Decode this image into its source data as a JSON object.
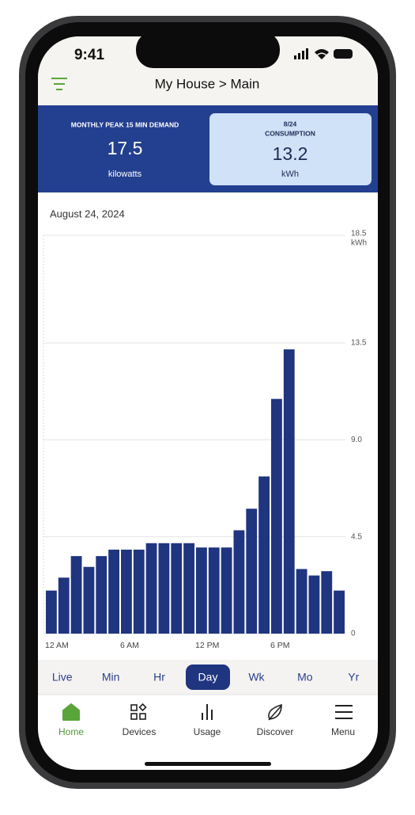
{
  "status": {
    "time": "9:41"
  },
  "header": {
    "title": "My House > Main"
  },
  "cards": [
    {
      "label": "MONTHLY PEAK 15 MIN DEMAND",
      "value": 17.5,
      "unit": "kilowatts"
    },
    {
      "date": "8/24",
      "label": "CONSUMPTION",
      "value": 13.2,
      "unit": "kWh"
    }
  ],
  "chart_data": {
    "type": "bar",
    "title": "August 24, 2024",
    "y_unit": "kWh",
    "categories": [
      "12 AM",
      null,
      null,
      null,
      null,
      null,
      "6 AM",
      null,
      null,
      null,
      null,
      null,
      "12 PM",
      null,
      null,
      null,
      null,
      null,
      "6 PM",
      null,
      null,
      null,
      null,
      null
    ],
    "values": [
      2.0,
      2.6,
      3.6,
      3.1,
      3.6,
      3.9,
      3.9,
      3.9,
      4.2,
      4.2,
      4.2,
      4.2,
      4.0,
      4.0,
      4.0,
      4.8,
      5.8,
      7.3,
      10.9,
      13.2,
      3.0,
      2.7,
      2.9,
      2.0
    ],
    "color": "#1f3580",
    "ylim": [
      0,
      18.5
    ],
    "yticks": [
      0,
      {
        "value": 4.5,
        "label": "4.5"
      },
      {
        "value": 9,
        "label": "9.0"
      },
      13.5,
      18.5
    ],
    "grid": true
  },
  "tabs": {
    "items": [
      "Live",
      "Min",
      "Hr",
      "Day",
      "Wk",
      "Mo",
      "Yr"
    ],
    "selected": 3
  },
  "nav": {
    "items": [
      "Home",
      "Devices",
      "Usage",
      "Discover",
      "Menu"
    ],
    "selected": 0
  }
}
